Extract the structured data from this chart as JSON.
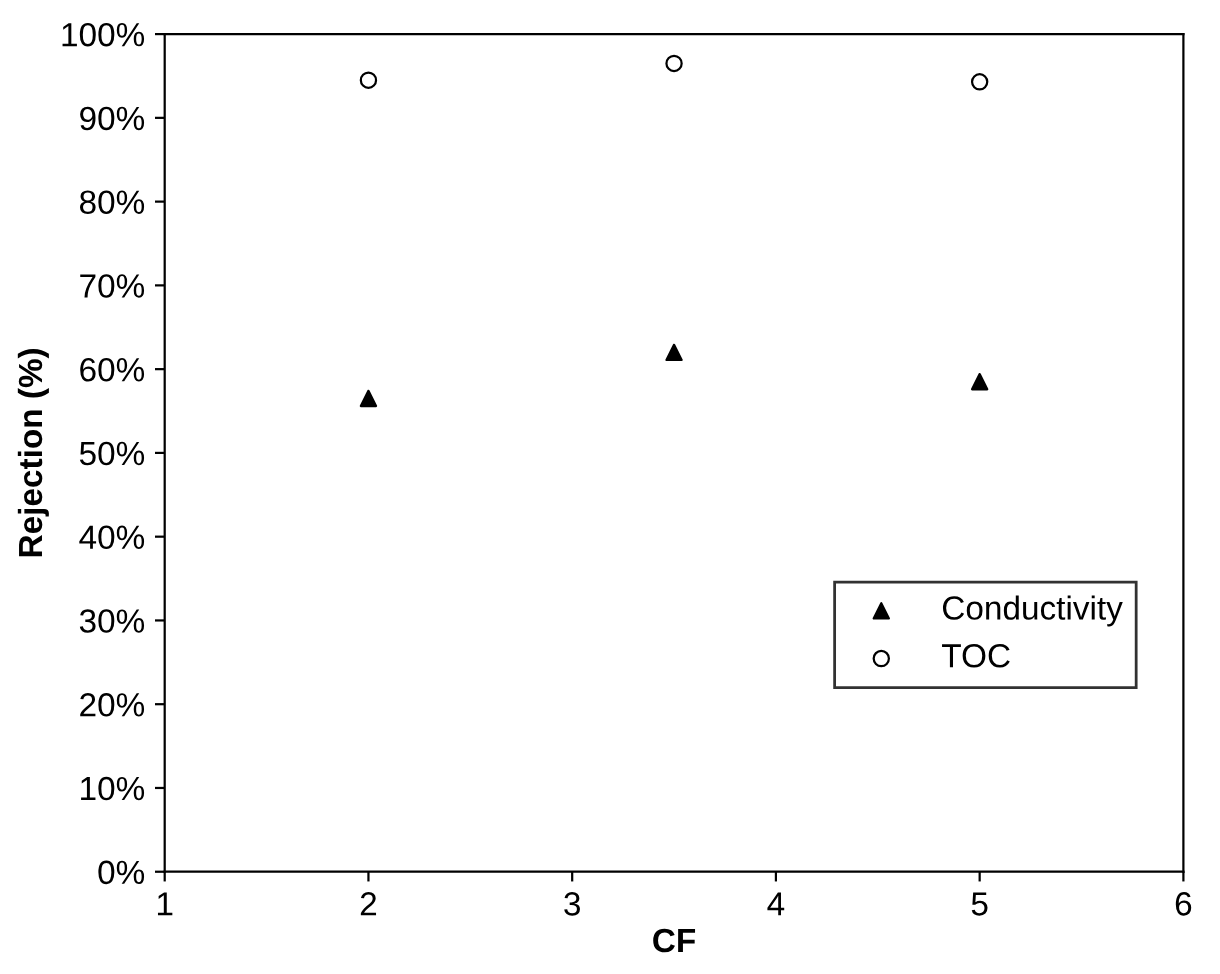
{
  "chart_data": {
    "type": "scatter",
    "xlabel": "CF",
    "ylabel": "Rejection (%)",
    "series": [
      {
        "name": "Conductivity",
        "color": "#000000",
        "marker": "triangle",
        "x": [
          2,
          3.5,
          5
        ],
        "values": [
          56.5,
          62,
          58.5
        ]
      },
      {
        "name": "TOC",
        "color": "#000000",
        "marker": "circle",
        "x": [
          2,
          3.5,
          5
        ],
        "values": [
          94.5,
          96.5,
          94.3
        ]
      }
    ],
    "xlim": [
      1,
      6
    ],
    "xticks": [
      1,
      2,
      3,
      4,
      5,
      6
    ],
    "ylim": [
      0,
      100
    ],
    "yticks": [
      {
        "value": 0,
        "label": "0%"
      },
      {
        "value": 10,
        "label": "10%"
      },
      {
        "value": 20,
        "label": "20%"
      },
      {
        "value": 30,
        "label": "30%"
      },
      {
        "value": 40,
        "label": "40%"
      },
      {
        "value": 50,
        "label": "50%"
      },
      {
        "value": 60,
        "label": "60%"
      },
      {
        "value": 70,
        "label": "70%"
      },
      {
        "value": 80,
        "label": "80%"
      },
      {
        "value": 90,
        "label": "90%"
      },
      {
        "value": 100,
        "label": "100%"
      }
    ],
    "grid": false,
    "legend": "bottom right"
  }
}
